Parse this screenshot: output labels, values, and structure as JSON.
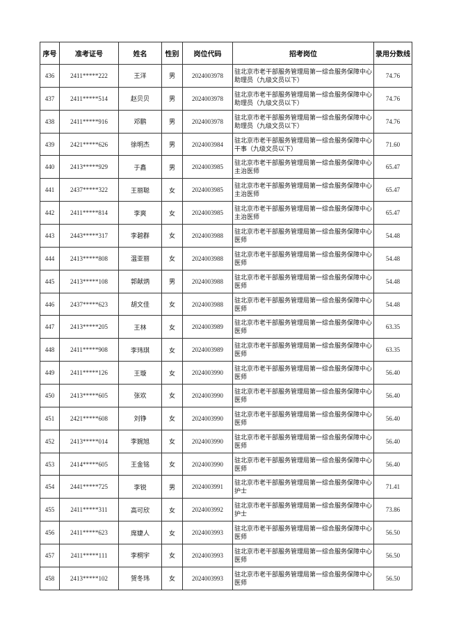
{
  "columns": [
    "序号",
    "准考证号",
    "姓名",
    "性别",
    "岗位代码",
    "招考岗位",
    "录用分数线"
  ],
  "rows": [
    [
      "436",
      "2411*****222",
      "王洋",
      "男",
      "2024003978",
      "驻北京市老干部服务管理局第一综合服务保障中心助理员（九级文员以下）",
      "74.76"
    ],
    [
      "437",
      "2411*****514",
      "赵贝贝",
      "男",
      "2024003978",
      "驻北京市老干部服务管理局第一综合服务保障中心助理员（九级文员以下）",
      "74.76"
    ],
    [
      "438",
      "2411*****916",
      "邓鹏",
      "男",
      "2024003978",
      "驻北京市老干部服务管理局第一综合服务保障中心助理员（九级文员以下）",
      "74.76"
    ],
    [
      "439",
      "2421*****626",
      "徐明杰",
      "男",
      "2024003984",
      "驻北京市老干部服务管理局第一综合服务保障中心干事（九级文员以下）",
      "71.60"
    ],
    [
      "440",
      "2413*****929",
      "于鑫",
      "男",
      "2024003985",
      "驻北京市老干部服务管理局第一综合服务保障中心主治医师",
      "65.47"
    ],
    [
      "441",
      "2437*****322",
      "王丽聪",
      "女",
      "2024003985",
      "驻北京市老干部服务管理局第一综合服务保障中心主治医师",
      "65.47"
    ],
    [
      "442",
      "2411*****814",
      "李爽",
      "女",
      "2024003985",
      "驻北京市老干部服务管理局第一综合服务保障中心主治医师",
      "65.47"
    ],
    [
      "443",
      "2443*****317",
      "李碧群",
      "女",
      "2024003988",
      "驻北京市老干部服务管理局第一综合服务保障中心医师",
      "54.48"
    ],
    [
      "444",
      "2413*****808",
      "温亚丽",
      "女",
      "2024003988",
      "驻北京市老干部服务管理局第一综合服务保障中心医师",
      "54.48"
    ],
    [
      "445",
      "2413*****108",
      "郭献炳",
      "男",
      "2024003988",
      "驻北京市老干部服务管理局第一综合服务保障中心医师",
      "54.48"
    ],
    [
      "446",
      "2437*****623",
      "胡文佳",
      "女",
      "2024003988",
      "驻北京市老干部服务管理局第一综合服务保障中心医师",
      "54.48"
    ],
    [
      "447",
      "2413*****205",
      "王林",
      "女",
      "2024003989",
      "驻北京市老干部服务管理局第一综合服务保障中心医师",
      "63.35"
    ],
    [
      "448",
      "2411*****908",
      "李玮琪",
      "女",
      "2024003989",
      "驻北京市老干部服务管理局第一综合服务保障中心医师",
      "63.35"
    ],
    [
      "449",
      "2411*****126",
      "王璇",
      "女",
      "2024003990",
      "驻北京市老干部服务管理局第一综合服务保障中心医师",
      "56.40"
    ],
    [
      "450",
      "2413*****605",
      "张欢",
      "女",
      "2024003990",
      "驻北京市老干部服务管理局第一综合服务保障中心医师",
      "56.40"
    ],
    [
      "451",
      "2421*****608",
      "刘铮",
      "女",
      "2024003990",
      "驻北京市老干部服务管理局第一综合服务保障中心医师",
      "56.40"
    ],
    [
      "452",
      "2413*****014",
      "李婉旭",
      "女",
      "2024003990",
      "驻北京市老干部服务管理局第一综合服务保障中心医师",
      "56.40"
    ],
    [
      "453",
      "2414*****605",
      "王金铭",
      "女",
      "2024003990",
      "驻北京市老干部服务管理局第一综合服务保障中心医师",
      "56.40"
    ],
    [
      "454",
      "2441*****725",
      "李锐",
      "男",
      "2024003991",
      "驻北京市老干部服务管理局第一综合服务保障中心护士",
      "71.41"
    ],
    [
      "455",
      "2411*****311",
      "高可欣",
      "女",
      "2024003992",
      "驻北京市老干部服务管理局第一综合服务保障中心护士",
      "73.86"
    ],
    [
      "456",
      "2411*****623",
      "席婕人",
      "女",
      "2024003993",
      "驻北京市老干部服务管理局第一综合服务保障中心医师",
      "56.50"
    ],
    [
      "457",
      "2411*****111",
      "李桐宇",
      "女",
      "2024003993",
      "驻北京市老干部服务管理局第一综合服务保障中心医师",
      "56.50"
    ],
    [
      "458",
      "2413*****102",
      "贺冬玮",
      "女",
      "2024003993",
      "驻北京市老干部服务管理局第一综合服务保障中心医师",
      "56.50"
    ]
  ]
}
